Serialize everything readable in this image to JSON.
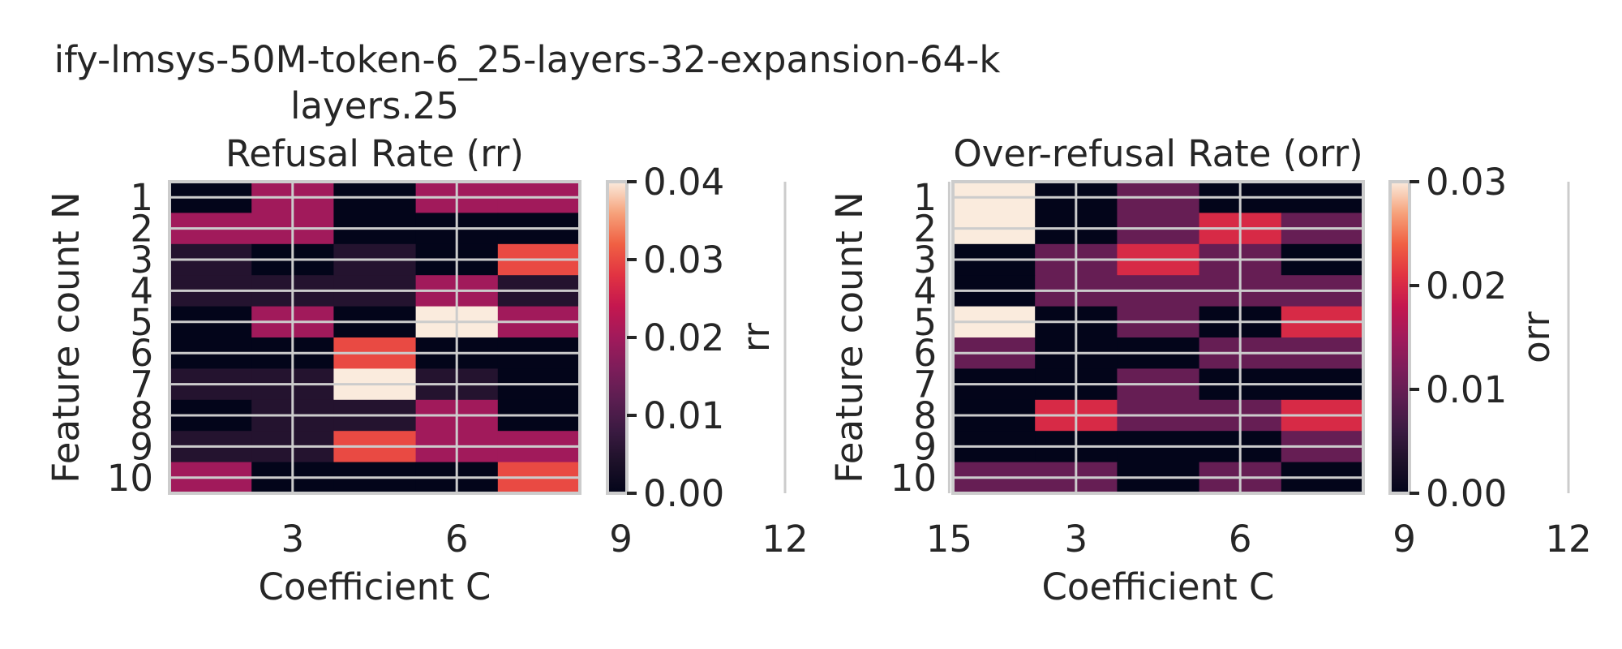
{
  "suptitle_line1": "ify-lmsys-50M-token-6_25-layers-32-expansion-64-k",
  "suptitle_line2": "layers.25",
  "chart_data": [
    {
      "type": "heatmap",
      "title": "Refusal Rate (rr)",
      "xlabel": "Coefficient C",
      "ylabel": "Feature count N",
      "x_ticks": [
        "3",
        "6",
        "9",
        "12",
        "15"
      ],
      "y_ticks": [
        "1",
        "2",
        "3",
        "4",
        "5",
        "6",
        "7",
        "8",
        "9",
        "10"
      ],
      "colorbar_label": "rr",
      "colorbar_ticks": [
        "0.00",
        "0.01",
        "0.02",
        "0.03",
        "0.04"
      ],
      "vmin": 0.0,
      "vmax": 0.04,
      "values": [
        [
          0.0,
          0.02,
          0.0,
          0.02,
          0.02
        ],
        [
          0.02,
          0.02,
          0.0,
          0.0,
          0.0
        ],
        [
          0.005,
          0.0,
          0.005,
          0.0,
          0.03
        ],
        [
          0.005,
          0.005,
          0.005,
          0.02,
          0.005
        ],
        [
          0.0,
          0.02,
          0.0,
          0.04,
          0.02
        ],
        [
          0.0,
          0.0,
          0.03,
          0.0,
          0.0
        ],
        [
          0.005,
          0.005,
          0.04,
          0.005,
          0.0
        ],
        [
          0.0,
          0.005,
          0.005,
          0.02,
          0.0
        ],
        [
          0.005,
          0.005,
          0.03,
          0.02,
          0.02
        ],
        [
          0.02,
          0.0,
          0.0,
          0.0,
          0.03
        ]
      ]
    },
    {
      "type": "heatmap",
      "title": "Over-refusal Rate (orr)",
      "xlabel": "Coefficient C",
      "ylabel": "Feature count N",
      "x_ticks": [
        "3",
        "6",
        "9",
        "12",
        "15"
      ],
      "y_ticks": [
        "1",
        "2",
        "3",
        "4",
        "5",
        "6",
        "7",
        "8",
        "9",
        "10"
      ],
      "colorbar_label": "orr",
      "colorbar_ticks": [
        "0.00",
        "0.01",
        "0.02",
        "0.03"
      ],
      "vmin": 0.0,
      "vmax": 0.03,
      "values": [
        [
          0.03,
          0.0,
          0.01,
          0.0,
          0.0
        ],
        [
          0.03,
          0.0,
          0.01,
          0.02,
          0.01
        ],
        [
          0.0,
          0.01,
          0.02,
          0.01,
          0.0
        ],
        [
          0.0,
          0.01,
          0.01,
          0.01,
          0.01
        ],
        [
          0.03,
          0.0,
          0.01,
          0.0,
          0.02
        ],
        [
          0.01,
          0.0,
          0.0,
          0.01,
          0.01
        ],
        [
          0.0,
          0.0,
          0.01,
          0.0,
          0.0
        ],
        [
          0.0,
          0.02,
          0.01,
          0.01,
          0.02
        ],
        [
          0.0,
          0.0,
          0.0,
          0.0,
          0.01
        ],
        [
          0.01,
          0.01,
          0.0,
          0.01,
          0.0
        ]
      ]
    }
  ]
}
